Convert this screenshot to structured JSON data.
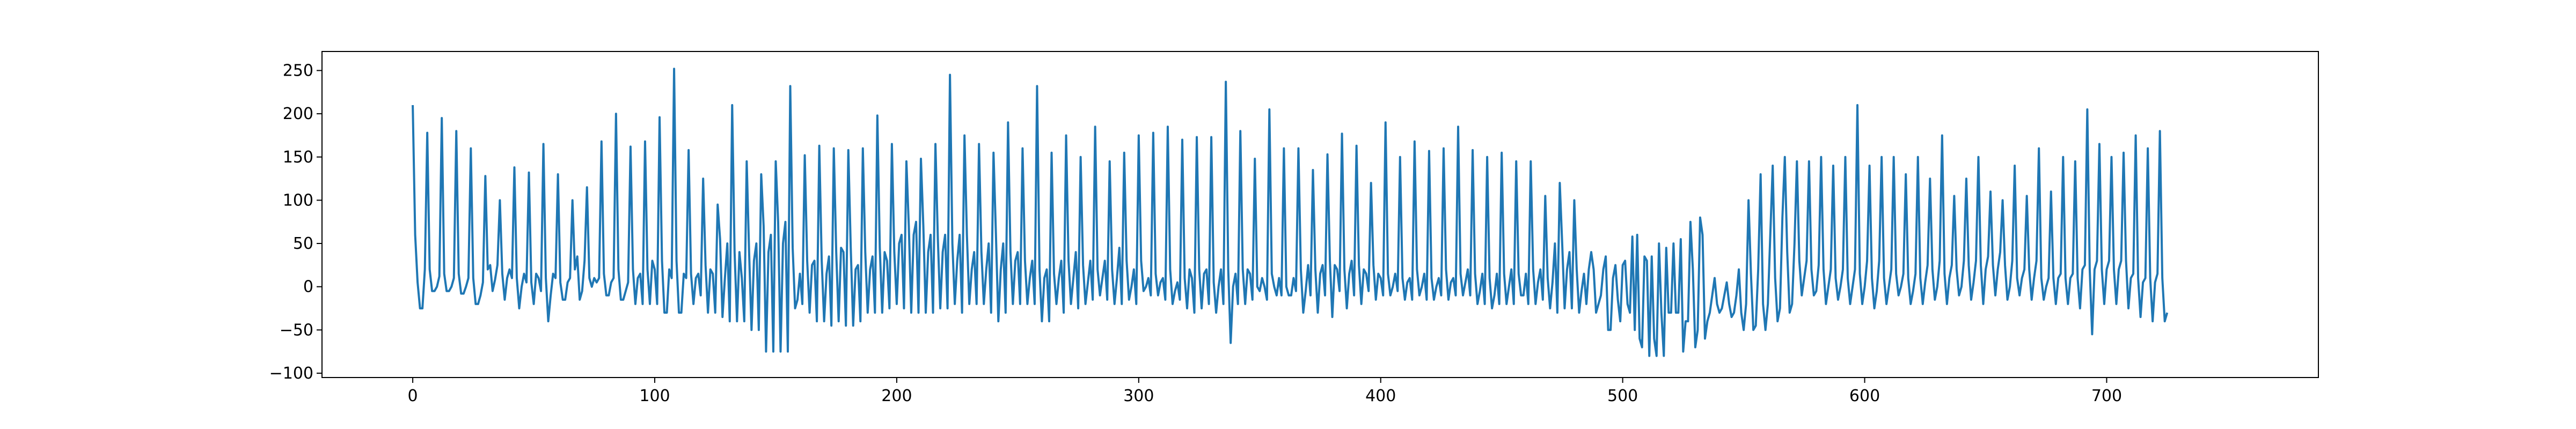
{
  "chart_data": {
    "type": "line",
    "title": "",
    "xlabel": "",
    "ylabel": "",
    "xlim": [
      -37.5,
      787.5
    ],
    "ylim": [
      -105,
      272
    ],
    "grid": false,
    "legend": "none",
    "x_ticks": [
      0,
      100,
      200,
      300,
      400,
      500,
      600,
      700
    ],
    "x_tick_labels": [
      "0",
      "100",
      "200",
      "300",
      "400",
      "500",
      "600",
      "700"
    ],
    "y_ticks": [
      -100,
      -50,
      0,
      50,
      100,
      150,
      200,
      250
    ],
    "y_tick_labels": [
      "−100",
      "−50",
      "0",
      "50",
      "100",
      "150",
      "200",
      "250"
    ],
    "line_color": "#1f77b4",
    "series": [
      {
        "x_start": 0,
        "x_step": 1,
        "values": [
          210,
          60,
          5,
          -25,
          -25,
          20,
          178,
          20,
          -5,
          -5,
          0,
          12,
          195,
          15,
          -5,
          -5,
          0,
          10,
          180,
          15,
          -8,
          -8,
          0,
          10,
          160,
          10,
          -20,
          -20,
          -10,
          5,
          128,
          20,
          25,
          -5,
          8,
          25,
          100,
          15,
          -15,
          10,
          20,
          10,
          138,
          10,
          -25,
          0,
          15,
          5,
          132,
          5,
          -20,
          15,
          10,
          -5,
          165,
          10,
          -40,
          -10,
          15,
          10,
          130,
          5,
          -15,
          -15,
          5,
          10,
          100,
          20,
          35,
          -15,
          -5,
          30,
          115,
          10,
          0,
          10,
          5,
          10,
          168,
          15,
          -10,
          -10,
          5,
          10,
          200,
          20,
          -15,
          -15,
          -5,
          5,
          162,
          20,
          -20,
          10,
          15,
          -20,
          168,
          20,
          -20,
          30,
          20,
          -20,
          196,
          30,
          -30,
          -30,
          20,
          10,
          252,
          30,
          -30,
          -30,
          15,
          10,
          158,
          15,
          -20,
          10,
          15,
          -10,
          125,
          25,
          -30,
          20,
          15,
          -30,
          95,
          55,
          -35,
          10,
          50,
          -40,
          210,
          40,
          -40,
          40,
          10,
          -40,
          145,
          40,
          -50,
          30,
          50,
          -50,
          130,
          70,
          -75,
          40,
          60,
          -75,
          145,
          75,
          -75,
          50,
          75,
          -75,
          232,
          45,
          -25,
          -15,
          15,
          -20,
          152,
          30,
          -30,
          25,
          30,
          -40,
          163,
          30,
          -40,
          15,
          35,
          -45,
          160,
          40,
          -40,
          45,
          40,
          -45,
          158,
          45,
          -45,
          20,
          25,
          -40,
          160,
          40,
          -30,
          20,
          35,
          -30,
          198,
          45,
          -30,
          40,
          30,
          -25,
          165,
          40,
          -20,
          50,
          60,
          -25,
          145,
          70,
          -30,
          60,
          75,
          -30,
          148,
          70,
          -30,
          40,
          60,
          -30,
          165,
          55,
          -25,
          40,
          60,
          -25,
          245,
          50,
          -20,
          30,
          60,
          -30,
          175,
          60,
          -20,
          20,
          40,
          -20,
          165,
          40,
          -20,
          20,
          50,
          -30,
          155,
          60,
          -40,
          20,
          50,
          -30,
          190,
          40,
          -20,
          30,
          40,
          -20,
          160,
          30,
          -20,
          10,
          30,
          -20,
          232,
          20,
          -40,
          10,
          20,
          -40,
          155,
          15,
          -20,
          10,
          30,
          -30,
          175,
          30,
          -20,
          10,
          40,
          -25,
          150,
          25,
          -20,
          5,
          30,
          -15,
          185,
          20,
          -10,
          10,
          30,
          -15,
          145,
          20,
          -20,
          10,
          45,
          -20,
          155,
          30,
          -15,
          0,
          20,
          -20,
          175,
          30,
          -5,
          0,
          10,
          -10,
          178,
          15,
          -10,
          5,
          10,
          -15,
          185,
          20,
          -20,
          -5,
          5,
          -15,
          170,
          10,
          -25,
          20,
          10,
          -30,
          173,
          20,
          -25,
          15,
          20,
          -20,
          173,
          5,
          -30,
          0,
          20,
          -20,
          237,
          20,
          -65,
          0,
          15,
          -20,
          180,
          20,
          -20,
          20,
          15,
          -15,
          148,
          0,
          -5,
          10,
          0,
          -15,
          205,
          15,
          0,
          -10,
          10,
          -10,
          160,
          0,
          -10,
          -10,
          10,
          -5,
          160,
          20,
          -30,
          -5,
          25,
          -10,
          135,
          20,
          -30,
          15,
          25,
          -10,
          153,
          30,
          -35,
          25,
          20,
          -5,
          177,
          20,
          -25,
          15,
          30,
          -10,
          163,
          25,
          -20,
          20,
          15,
          -5,
          120,
          25,
          -15,
          15,
          10,
          -10,
          190,
          15,
          -10,
          0,
          15,
          -5,
          150,
          10,
          -15,
          5,
          10,
          -15,
          168,
          20,
          -10,
          0,
          15,
          -15,
          157,
          10,
          -15,
          0,
          10,
          -10,
          160,
          20,
          -15,
          5,
          10,
          -10,
          185,
          15,
          -10,
          5,
          20,
          -10,
          158,
          15,
          -20,
          -5,
          15,
          -20,
          150,
          10,
          -25,
          -10,
          15,
          -20,
          155,
          15,
          -20,
          0,
          20,
          -20,
          145,
          15,
          -10,
          -10,
          15,
          -20,
          145,
          20,
          -20,
          5,
          20,
          -15,
          105,
          10,
          -25,
          5,
          50,
          -30,
          120,
          50,
          -25,
          20,
          40,
          -25,
          100,
          20,
          -30,
          -5,
          15,
          -20,
          20,
          40,
          20,
          -30,
          -20,
          -10,
          20,
          35,
          -50,
          -50,
          10,
          25,
          -15,
          -40,
          25,
          30,
          -20,
          -30,
          58,
          -50,
          60,
          -60,
          -70,
          35,
          30,
          -80,
          35,
          -60,
          -80,
          50,
          -30,
          -80,
          45,
          -30,
          -30,
          50,
          -30,
          -30,
          55,
          -75,
          -40,
          -40,
          75,
          20,
          -70,
          -50,
          80,
          60,
          -60,
          -40,
          -30,
          -10,
          10,
          -20,
          -30,
          -25,
          -10,
          5,
          -20,
          -35,
          -30,
          -10,
          20,
          -30,
          -50,
          -20,
          100,
          15,
          -50,
          -45,
          20,
          130,
          -20,
          -50,
          -20,
          60,
          140,
          10,
          -40,
          -25,
          80,
          150,
          40,
          -30,
          -20,
          50,
          145,
          30,
          -10,
          10,
          30,
          145,
          20,
          -10,
          -5,
          25,
          150,
          20,
          -20,
          0,
          20,
          140,
          10,
          -15,
          0,
          20,
          150,
          10,
          -20,
          0,
          20,
          210,
          15,
          -20,
          0,
          30,
          140,
          10,
          -25,
          -5,
          30,
          150,
          10,
          -20,
          0,
          20,
          150,
          15,
          -10,
          0,
          15,
          130,
          10,
          -20,
          -5,
          15,
          150,
          10,
          -20,
          5,
          25,
          125,
          20,
          -15,
          0,
          30,
          175,
          15,
          -20,
          10,
          25,
          105,
          20,
          -10,
          0,
          30,
          125,
          25,
          -15,
          5,
          30,
          150,
          25,
          -20,
          20,
          35,
          110,
          25,
          -10,
          20,
          40,
          100,
          25,
          -15,
          0,
          30,
          140,
          10,
          -10,
          10,
          20,
          105,
          20,
          -15,
          10,
          30,
          160,
          10,
          -15,
          0,
          10,
          110,
          10,
          -20,
          10,
          15,
          150,
          10,
          -20,
          10,
          15,
          145,
          10,
          -25,
          20,
          25,
          205,
          20,
          -55,
          20,
          30,
          165,
          20,
          -20,
          20,
          30,
          150,
          20,
          -20,
          20,
          30,
          155,
          30,
          -25,
          10,
          15,
          175,
          10,
          -35,
          5,
          10,
          160,
          10,
          -40,
          5,
          15,
          180,
          10,
          -40,
          -30
        ]
      }
    ]
  }
}
